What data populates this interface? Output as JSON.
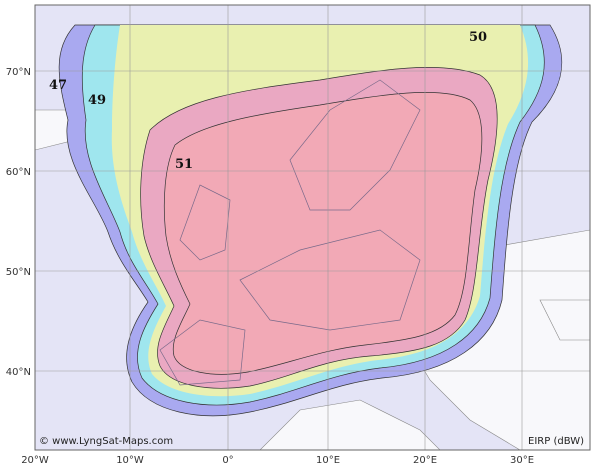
{
  "map": {
    "lon_labels": [
      "20°W",
      "10°W",
      "0°",
      "10°E",
      "20°E",
      "30°E"
    ],
    "lat_labels": [
      "70°N",
      "60°N",
      "50°N",
      "40°N"
    ],
    "contour_labels": [
      "47",
      "49",
      "50",
      "51"
    ],
    "credit": "© www.LyngSat-Maps.com",
    "legend": "EIRP (dBW)"
  }
}
